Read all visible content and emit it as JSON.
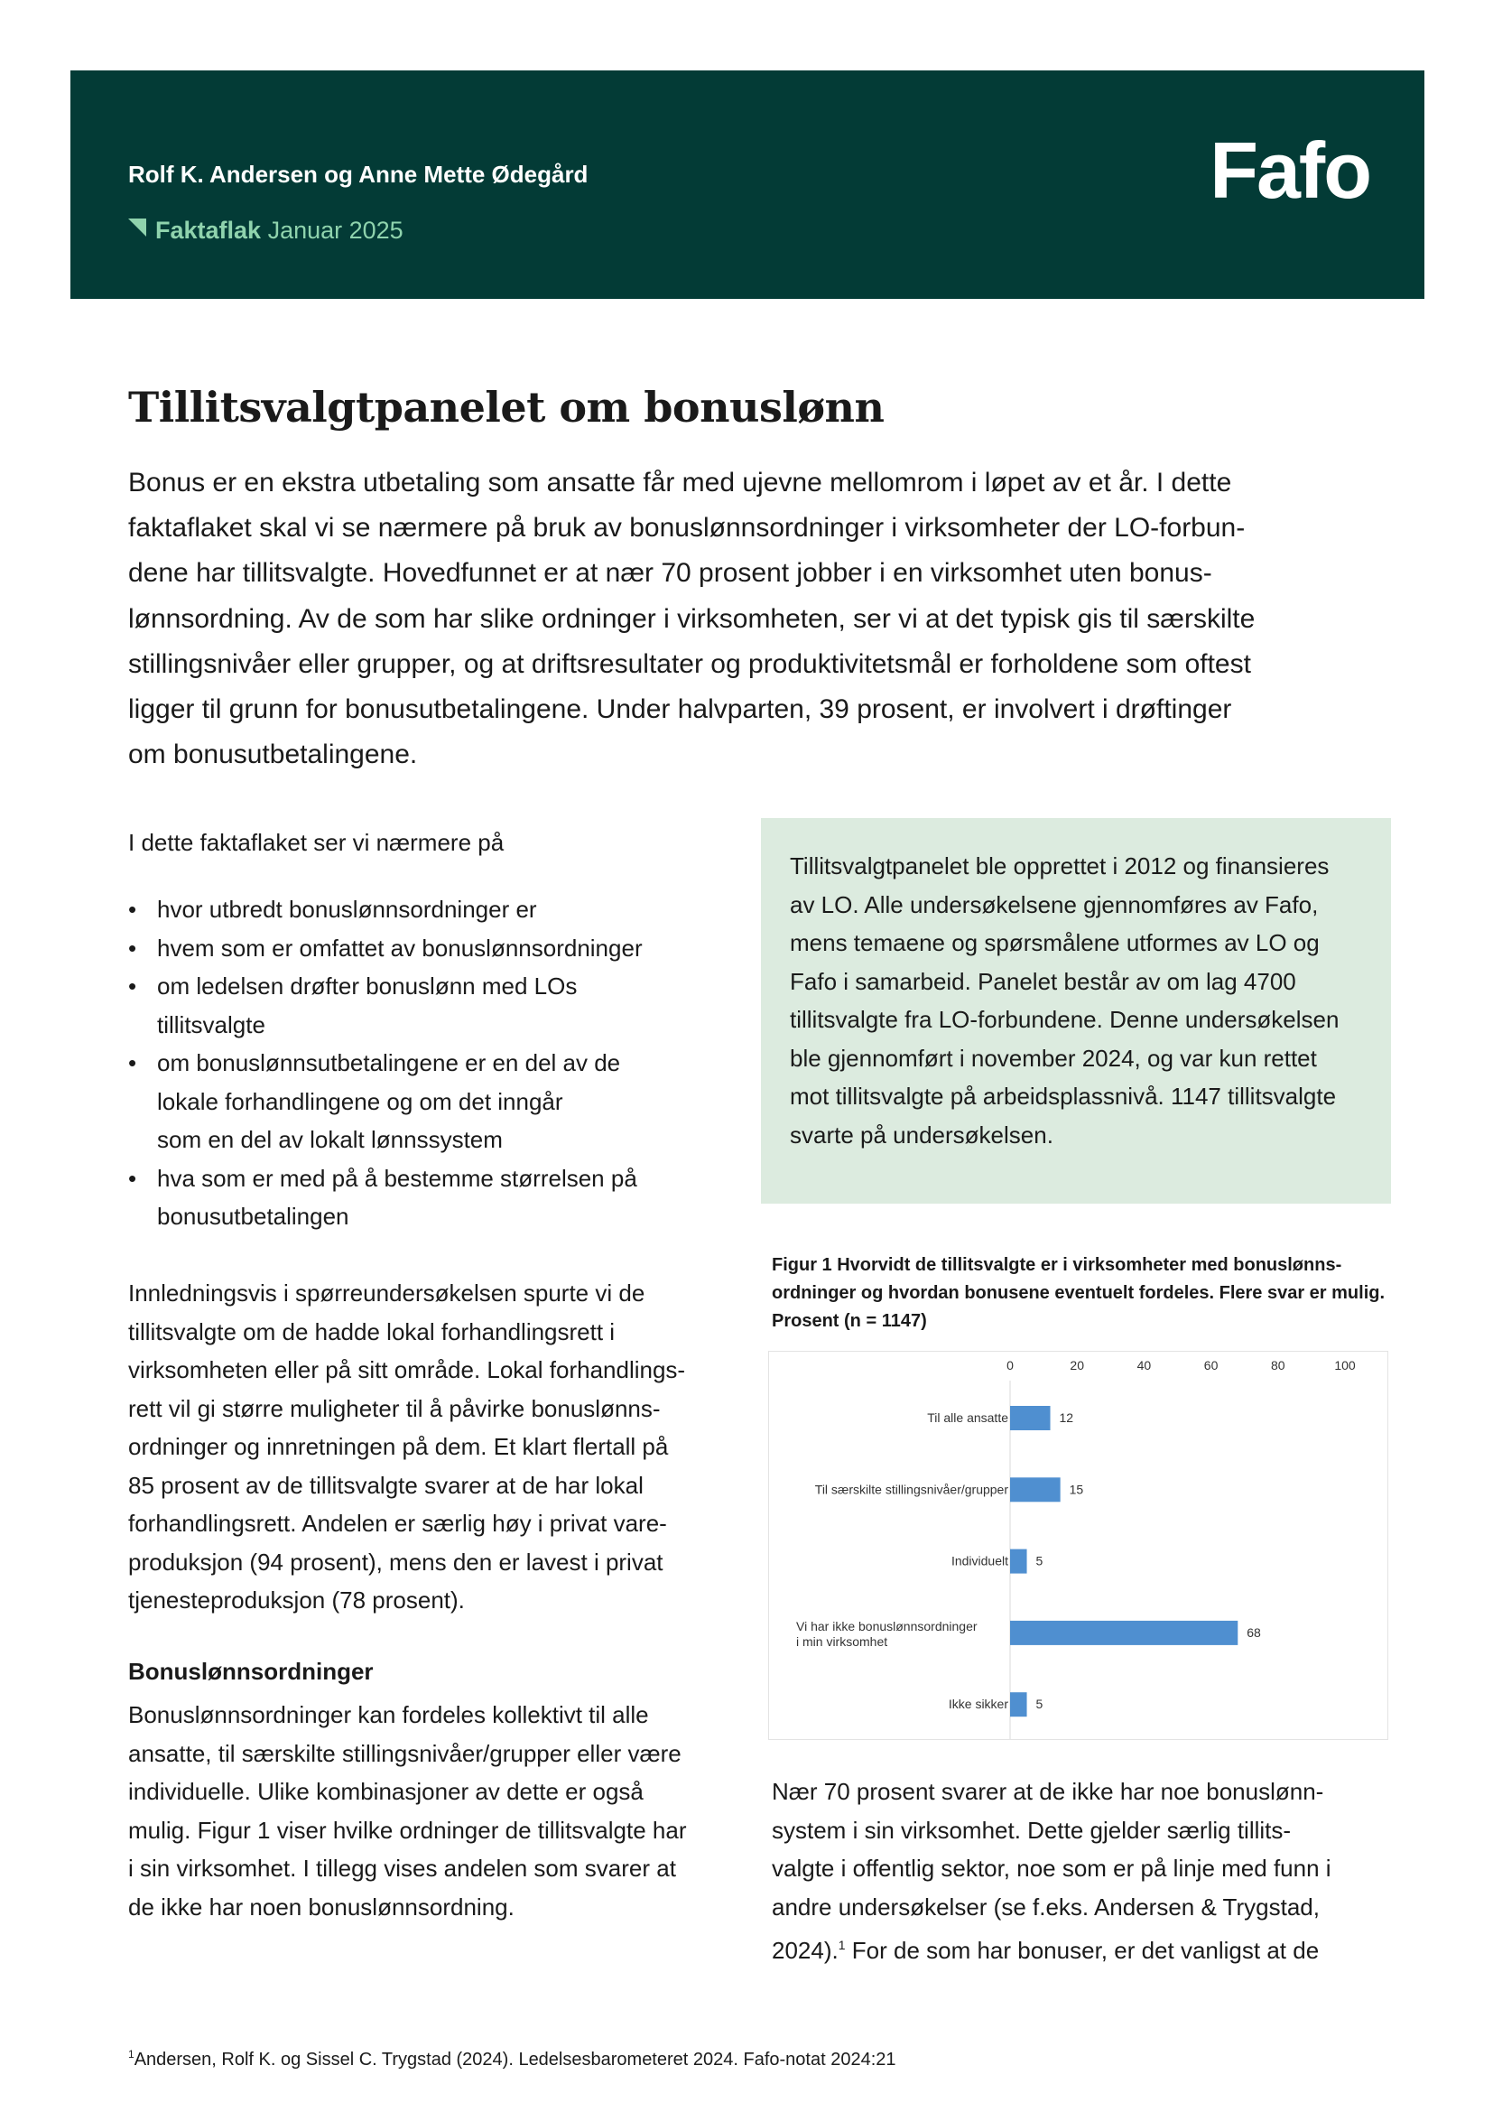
{
  "header": {
    "authors": "Rolf K. Andersen og Anne Mette Ødegård",
    "series": "Faktaflak",
    "date": "Januar 2025",
    "logo": "Fafo",
    "bg_color": "#033b36",
    "accent": "#8fd3ad"
  },
  "title": "Tillitsvalgtpanelet om bonuslønn",
  "intro": [
    "Bonus er en ekstra utbetaling som ansatte får med ujevne mellomrom i løpet av et år. I dette",
    "faktaflaket skal vi se nærmere på bruk av bonuslønnsordninger i virksomheter der LO-forbun-",
    "dene har tillitsvalgte. Hovedfunnet er at nær 70 prosent jobber i en virksomhet uten bonus-",
    "lønnsordning. Av de som har slike ordninger i virksomheten, ser vi at det typisk gis til særskilte",
    "stillingsnivåer eller grupper, og at driftsresultater og produktivitetsmål er forholdene som oftest",
    "ligger til grunn for bonusutbetalingene. Under halvparten, 39 prosent, er involvert i drøftinger",
    "om bonusutbetalingene."
  ],
  "left": {
    "lead": "I dette faktaflaket ser vi nærmere på",
    "bullets": [
      [
        "hvor utbredt bonuslønnsordninger er"
      ],
      [
        "hvem som er omfattet av bonuslønnsordninger"
      ],
      [
        "om ledelsen drøfter bonuslønn med LOs",
        "tillitsvalgte"
      ],
      [
        "om bonuslønnsutbetalingene er en del av de",
        "lokale forhandlingene og om det inngår",
        "som en del av lokalt lønnssystem"
      ],
      [
        "hva som er med på å bestemme størrelsen på",
        "bonusutbetalingen"
      ]
    ],
    "para1": [
      "Innledningsvis i spørreundersøkelsen spurte vi de",
      "tillitsvalgte om de hadde lokal forhandlingsrett i",
      "virksomheten eller på sitt område. Lokal forhandlings-",
      "rett vil gi større muligheter til å påvirke bonuslønns-",
      "ordninger og innretningen på dem. Et klart flertall på",
      "85 prosent av de tillitsvalgte svarer at de har lokal",
      "forhandlingsrett. Andelen er særlig høy i privat vare-",
      "produksjon (94 prosent), mens den er lavest i privat",
      "tjenesteproduksjon (78 prosent)."
    ],
    "heading": "Bonuslønnsordninger",
    "para2": [
      "Bonuslønnsordninger kan fordeles kollektivt til alle",
      "ansatte, til særskilte stillingsnivåer/grupper eller være",
      "individuelle. Ulike kombinasjoner av dette er også",
      "mulig. Figur 1 viser hvilke ordninger de tillitsvalgte har",
      "i sin virksomhet. I tillegg vises andelen som svarer at",
      "de ikke har noen bonuslønnsordning."
    ]
  },
  "infobox": {
    "lines": [
      "Tillitsvalgtpanelet ble opprettet i 2012 og finansieres",
      "av LO. Alle undersøkelsene gjennomføres av Fafo,",
      "mens temaene og spørsmålene utformes av LO og",
      "Fafo i samarbeid. Panelet består av om lag 4700",
      "tillitsvalgte fra LO-forbundene. Denne undersøkelsen",
      "ble gjennomført i november 2024, og var kun rettet",
      "mot tillitsvalgte på arbeidsplassnivå. 1147 tillitsvalgte",
      "svarte på undersøkelsen."
    ],
    "bg_color": "#dcebdf"
  },
  "figure_title": "Figur 1 Hvorvidt de tillitsvalgte er i virksomheter med bonuslønns-ordninger og hvordan bonusene eventuelt fordeles. Flere svar er mulig. Prosent (n = 1147)",
  "chart_data": {
    "type": "bar",
    "orientation": "horizontal",
    "categories": [
      [
        "Til alle ansatte"
      ],
      [
        "Til særskilte stillingsnivåer/grupper"
      ],
      [
        "Individuelt"
      ],
      [
        "Vi har ikke bonuslønnsordninger",
        "i min virksomhet"
      ],
      [
        "Ikke sikker"
      ]
    ],
    "values": [
      12,
      15,
      5,
      68,
      5
    ],
    "xlim": [
      0,
      100
    ],
    "xticks": [
      0,
      20,
      40,
      60,
      80,
      100
    ],
    "ticks_position": "top",
    "grid": false,
    "bar_color": "#4f8fd0",
    "data_labels": true
  },
  "right_para": {
    "lines": [
      "Nær 70 prosent svarer at de ikke har noe bonuslønn-",
      "system i sin virksomhet. Dette gjelder særlig tillits-",
      "valgte i offentlig sektor, noe som er på linje med funn i",
      "andre undersøkelser (se f.eks. Andersen & Trygstad,"
    ],
    "last_pre": "2024).",
    "footnote_ref": "1",
    "last_post": " For de som har bonuser, er det vanligst at de"
  },
  "footnote": {
    "mark": "1",
    "text": "Andersen, Rolf K.  og Sissel C. Trygstad (2024). Ledelsesbarometeret 2024. Fafo-notat 2024:21"
  }
}
